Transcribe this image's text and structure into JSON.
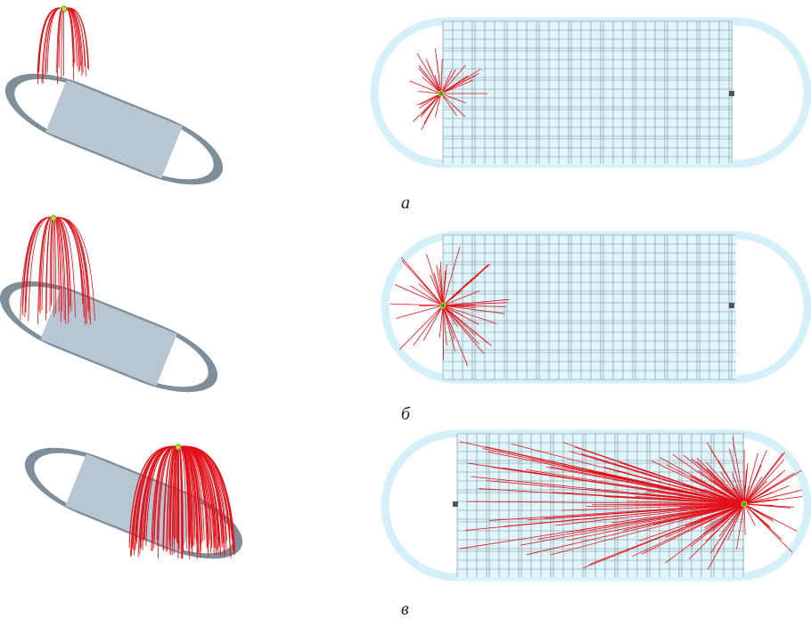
{
  "panels": [
    {
      "label": "а"
    },
    {
      "label": "б"
    },
    {
      "label": "в"
    }
  ]
}
